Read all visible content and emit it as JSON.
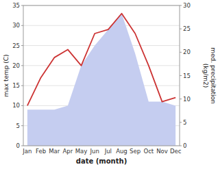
{
  "chart_data": {
    "type": "line",
    "x_label": "date (month)",
    "y_label": "max temp (C)",
    "y2_label": "med. precipitation\n(kg/m2)",
    "categories": [
      "Jan",
      "Feb",
      "Mar",
      "Apr",
      "May",
      "Jun",
      "Jul",
      "Aug",
      "Sep",
      "Oct",
      "Nov",
      "Dec"
    ],
    "series": [
      {
        "type": "area",
        "color": "#c5cdf0",
        "values": [
          9,
          9,
          9,
          10,
          20,
          25,
          29,
          33,
          23,
          11,
          11,
          10
        ]
      },
      {
        "type": "line",
        "color": "#cc3333",
        "values": [
          10,
          17,
          22,
          24,
          20,
          28,
          29,
          33,
          28,
          20,
          11,
          12
        ]
      }
    ],
    "ylim": [
      0,
      35
    ],
    "yticks": [
      0,
      5,
      10,
      15,
      20,
      25,
      30,
      35
    ],
    "y2lim": [
      0,
      30
    ],
    "y2ticks": [
      0,
      5,
      10,
      15,
      20,
      25,
      30
    ],
    "grid": true
  }
}
